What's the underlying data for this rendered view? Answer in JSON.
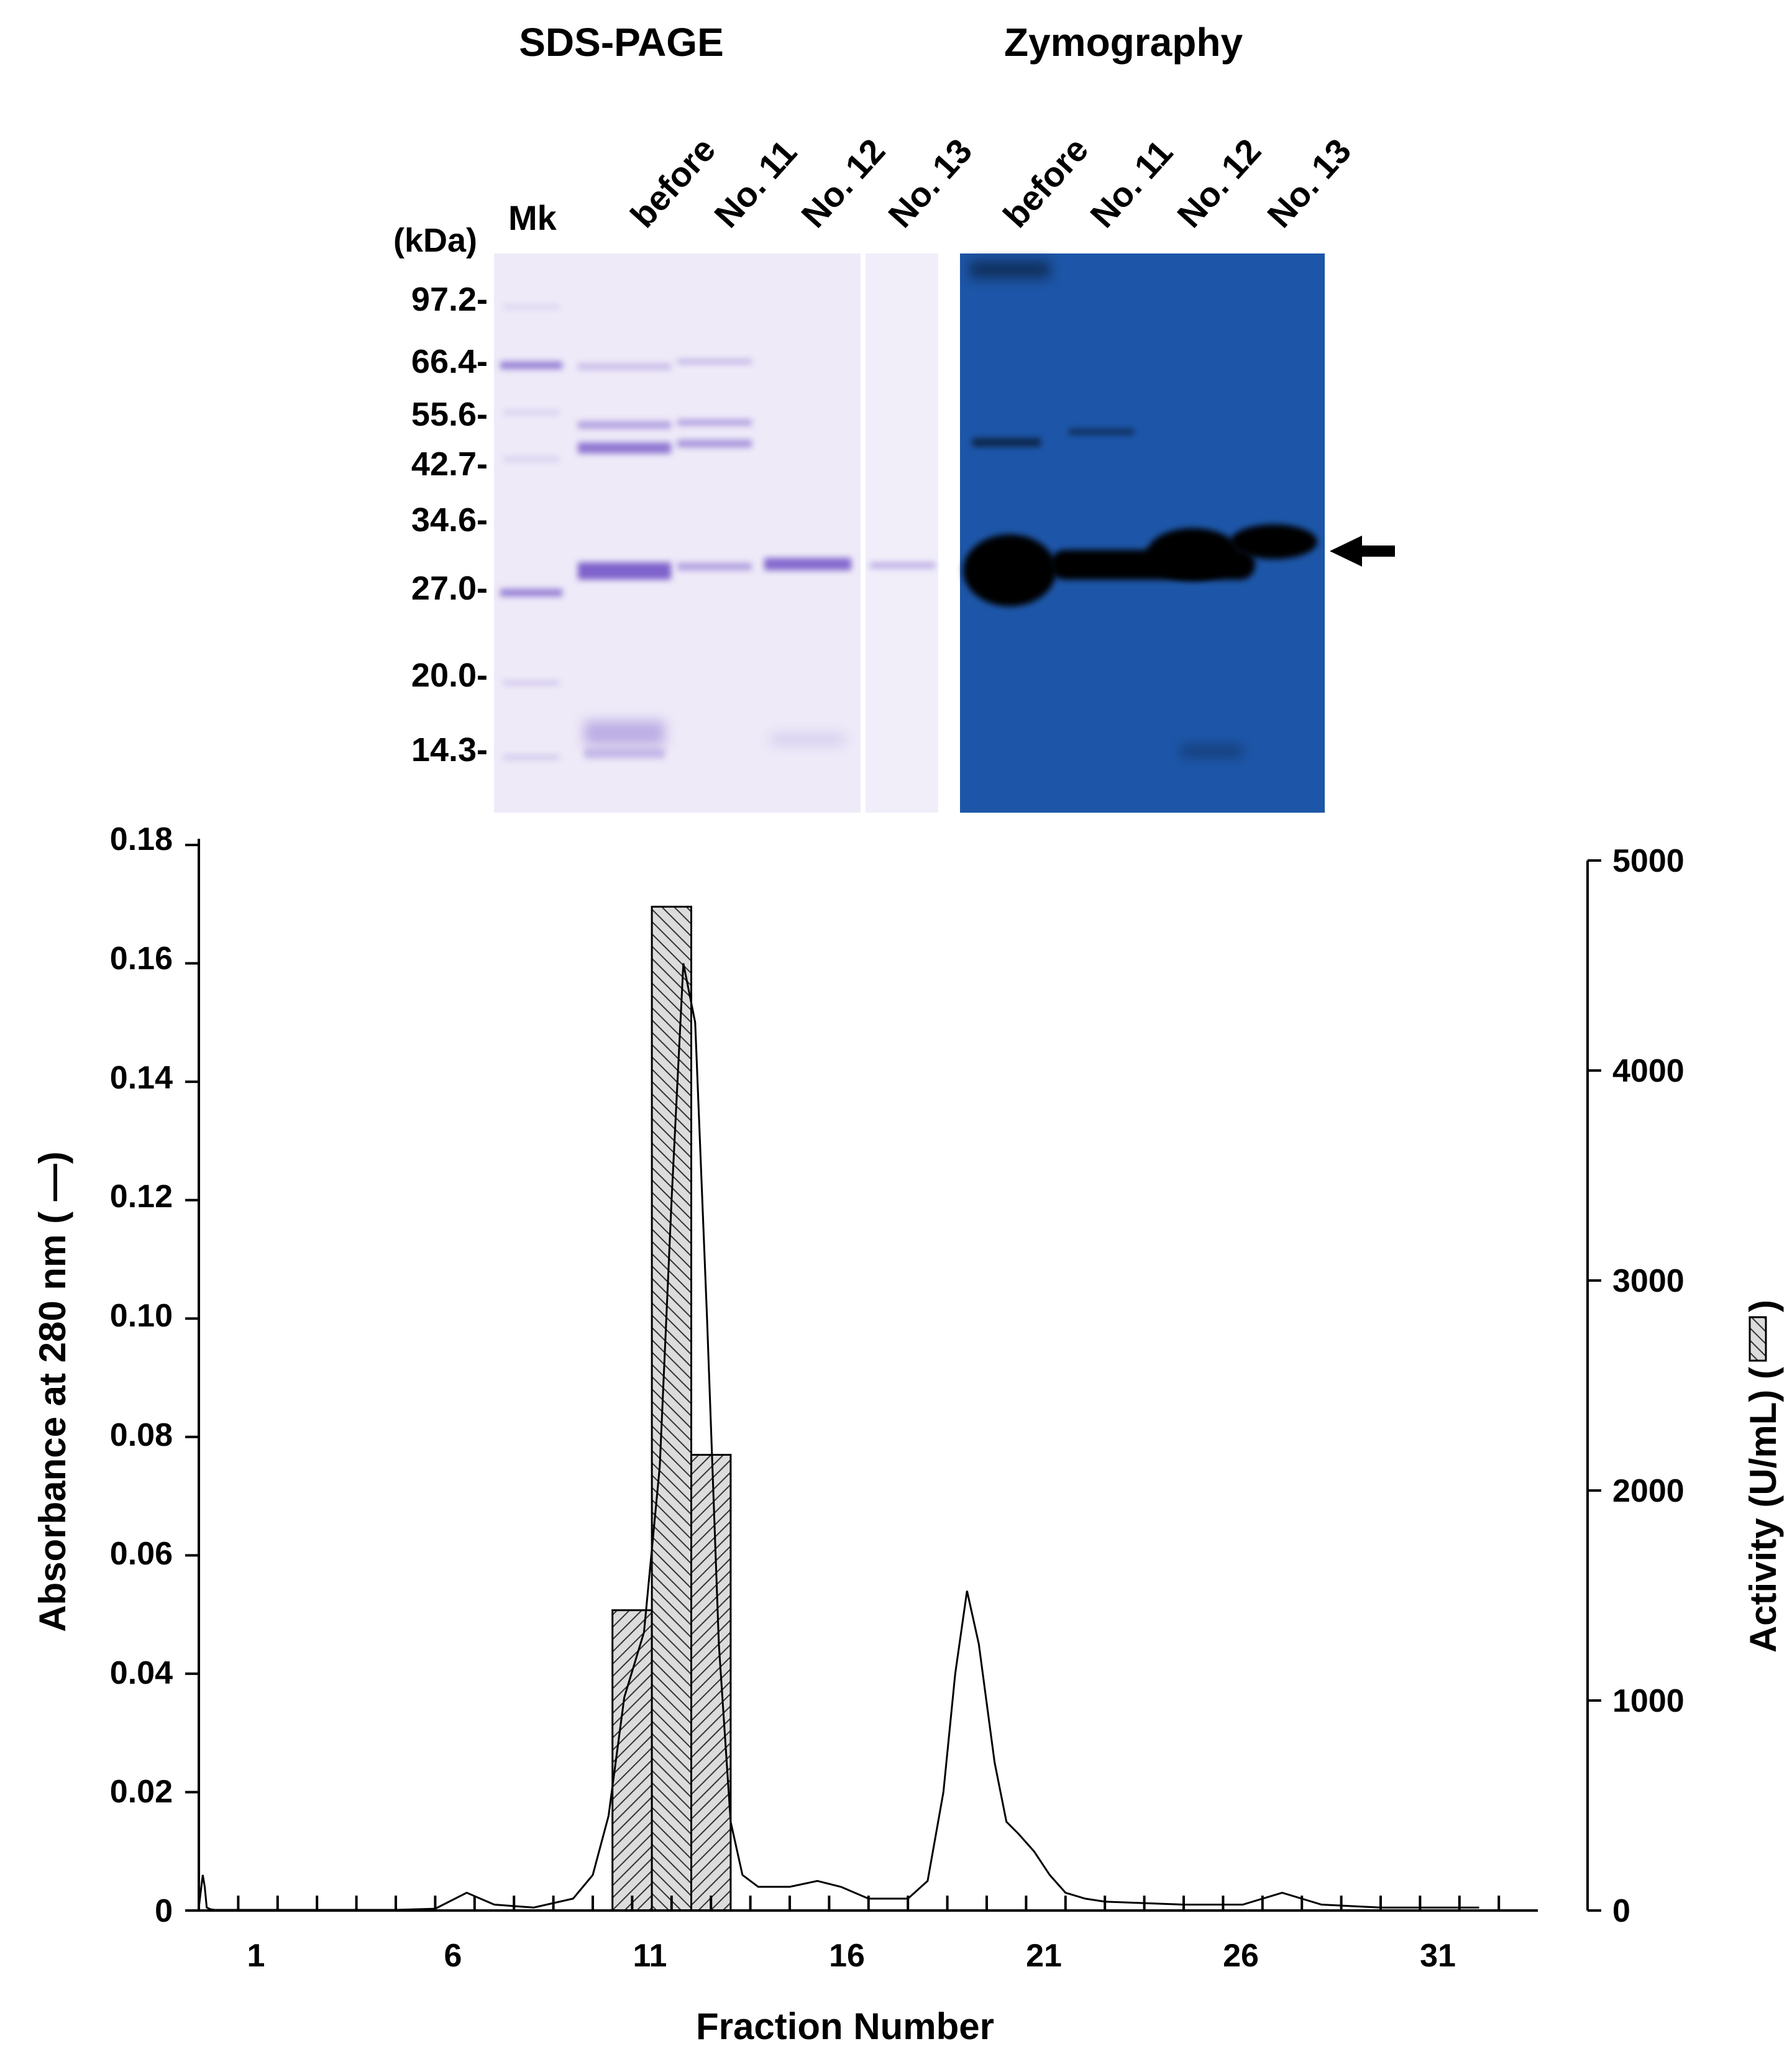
{
  "gels": {
    "sds_title": "SDS-PAGE",
    "zymo_title": "Zymography",
    "marker_lane": "Mk",
    "sds_lanes": [
      "before",
      "No. 11",
      "No. 12",
      "No. 13"
    ],
    "zymo_lanes": [
      "before",
      "No. 11",
      "No. 12",
      "No. 13"
    ],
    "mw_unit": "(kDa)",
    "mw_markers": [
      "97.2-",
      "66.4-",
      "55.6-",
      "42.7-",
      "34.6-",
      "27.0-",
      "20.0-",
      "14.3-"
    ],
    "colors": {
      "sds_background": "#eeeaf8",
      "sds_band": "#7f64cc",
      "zymo_background": "#1d56a8",
      "zymo_band": "#000000"
    }
  },
  "chart_data": {
    "type": "bar",
    "xlabel": "Fraction Number",
    "ylabel_left": "Absorbance at 280 nm ( —)",
    "ylabel_right": "Activity (U/mL) (",
    "xlim": [
      0,
      33.5
    ],
    "x_tick_labels": [
      "1",
      "6",
      "11",
      "16",
      "21",
      "26",
      "31"
    ],
    "ylim_left": [
      0,
      0.18
    ],
    "ylim_right": [
      0,
      5000
    ],
    "y_left_tick_labels": [
      "0",
      "0.02",
      "0.04",
      "0.06",
      "0.08",
      "0.10",
      "0.12",
      "0.14",
      "0.16",
      "0.18"
    ],
    "y_right_tick_labels": [
      "0",
      "1000",
      "2000",
      "3000",
      "4000",
      "5000"
    ],
    "series": [
      {
        "kind": "line",
        "axis": "left",
        "x": [
          0,
          0.1,
          0.15,
          0.2,
          0.3,
          0.4,
          1,
          3,
          5,
          6,
          6.8,
          7.5,
          8.5,
          9.5,
          10,
          10.4,
          10.8,
          11.3,
          11.7,
          12.0,
          12.3,
          12.6,
          12.9,
          13.2,
          13.5,
          13.8,
          14.2,
          15,
          15.7,
          16.3,
          17,
          18,
          18.5,
          18.9,
          19.2,
          19.5,
          19.8,
          20.2,
          20.5,
          20.8,
          21.2,
          21.6,
          22,
          22.5,
          23,
          25,
          26.5,
          27.5,
          28.5,
          30,
          32.5
        ],
        "y": [
          0.0005,
          0.006,
          0.004,
          0.0005,
          0.0002,
          0.0001,
          0.0001,
          0.0001,
          0.0001,
          0.0003,
          0.003,
          0.001,
          0.0005,
          0.002,
          0.006,
          0.016,
          0.036,
          0.047,
          0.075,
          0.12,
          0.16,
          0.15,
          0.1,
          0.045,
          0.015,
          0.006,
          0.004,
          0.004,
          0.005,
          0.004,
          0.002,
          0.002,
          0.005,
          0.02,
          0.04,
          0.054,
          0.045,
          0.025,
          0.015,
          0.013,
          0.01,
          0.006,
          0.003,
          0.002,
          0.0015,
          0.001,
          0.001,
          0.003,
          0.001,
          0.0005,
          0.0005
        ]
      },
      {
        "kind": "bar",
        "axis": "right",
        "categories": [
          "11",
          "12",
          "13"
        ],
        "values": [
          1430,
          4780,
          2170
        ]
      }
    ]
  }
}
